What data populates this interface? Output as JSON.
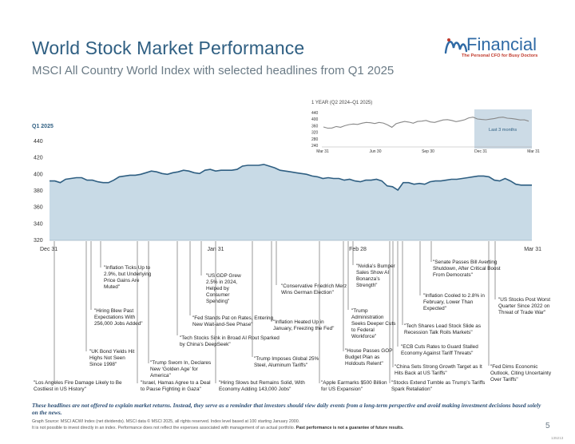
{
  "header": {
    "title": "World Stock Market Performance",
    "subtitle": "MSCI All Country World Index with selected headlines from Q1 2025"
  },
  "logo": {
    "name": "Financial",
    "tagline": "The Personal CFO for Busy Doctors",
    "color": "#2f6aa5"
  },
  "chart_data": [
    {
      "type": "area",
      "title": "Q1 2025",
      "ylim": [
        320,
        440
      ],
      "yticks": [
        320,
        340,
        360,
        380,
        400,
        420,
        440
      ],
      "xticks": [
        "Dec 31",
        "Jan 31",
        "Feb 28",
        "Mar 31"
      ],
      "color_fill": "#c8dae6",
      "color_line": "#2f5f82",
      "values": [
        392,
        392,
        390,
        394,
        395,
        396,
        396,
        393,
        393,
        391,
        390,
        390,
        393,
        397,
        398,
        399,
        399,
        400,
        402,
        404,
        403,
        401,
        400,
        402,
        403,
        405,
        404,
        402,
        401,
        405,
        406,
        404,
        405,
        405,
        405,
        406,
        410,
        411,
        411,
        411,
        412,
        410,
        408,
        405,
        404,
        403,
        402,
        401,
        400,
        398,
        397,
        395,
        396,
        395,
        395,
        393,
        394,
        392,
        391,
        393,
        393,
        394,
        392,
        386,
        385,
        381,
        390,
        390,
        388,
        389,
        388,
        391,
        392,
        392,
        393,
        394,
        394,
        395,
        396,
        397,
        398,
        398,
        397,
        393,
        392,
        395,
        392,
        388,
        387,
        387,
        387
      ]
    },
    {
      "type": "line",
      "title": "1 YEAR (Q2 2024–Q1 2025)",
      "ylim": [
        240,
        440
      ],
      "yticks": [
        240,
        280,
        320,
        360,
        400,
        440
      ],
      "xticks": [
        "Mar 31",
        "Jun 30",
        "Sep 30",
        "Dec 31",
        "Mar 31"
      ],
      "highlight_label": "Last 3 months",
      "color_line": "#888888",
      "color_highlight": "#ccdbe6",
      "values": [
        352,
        345,
        346,
        355,
        350,
        360,
        367,
        370,
        368,
        375,
        380,
        378,
        373,
        380,
        376,
        365,
        350,
        372,
        380,
        386,
        382,
        375,
        386,
        388,
        392,
        383,
        380,
        388,
        395,
        397,
        392,
        385,
        390,
        396,
        408,
        412,
        401,
        398,
        396,
        400,
        404,
        410,
        412,
        406,
        404,
        400,
        395,
        396,
        388
      ]
    }
  ],
  "headlines": [
    {
      "text": "\"Los Angeles Fire Damage Likely to Be Costliest in US History\""
    },
    {
      "text": "\"UK Bond Yields Hit Highs Not Seen Since 1998\""
    },
    {
      "text": "\"Hiring Blew Past Expectations With 256,000 Jobs Added\""
    },
    {
      "text": "\"Inflation Ticks Up to 2.9%, but Underlying Price Gains Are Muted\""
    },
    {
      "text": "\"Israel, Hamas Agree to a Deal to Pause Fighting in Gaza\""
    },
    {
      "text": "\"Trump Sworn In, Declares New ‘Golden Age’ for America\""
    },
    {
      "text": "\"Tech Stocks Sink in Broad AI Rout Sparked by China’s DeepSeek\""
    },
    {
      "text": "\"Fed Stands Pat on Rates, Entering New Wait-and-See Phase\""
    },
    {
      "text": "\"US GDP Grew 2.5% in 2024, Helped by Consumer Spending\""
    },
    {
      "text": "\"Hiring Slows but Remains Solid, With Economy Adding 143,000 Jobs\""
    },
    {
      "text": "\"Trump Imposes Global 25% Steel, Aluminum Tariffs\""
    },
    {
      "text": "\"Inflation Heated Up in January, Freezing the Fed\""
    },
    {
      "text": "\"Conservative Friedrich Merz Wins German Election\""
    },
    {
      "text": "\"Apple Earmarks $500 Billion for US Expansion\""
    },
    {
      "text": "\"House Passes GOP Budget Plan as Holdouts Relent\""
    },
    {
      "text": "\"Trump Administration Seeks Deeper Cuts to Federal Workforce\""
    },
    {
      "text": "\"Nvidia’s Bumper Sales Show AI Bonanza’s Strength\""
    },
    {
      "text": "\"Stocks Extend Tumble as Trump’s Tariffs Spark Retaliation\""
    },
    {
      "text": "\"China Sets Strong Growth Target as It Hits Back at US Tariffs\""
    },
    {
      "text": "\"ECB Cuts Rates to Guard Stalled Economy Against Tariff Threats\""
    },
    {
      "text": "\"Tech Shares Lead Stock Slide as Recession Talk Roils Markets\""
    },
    {
      "text": "\"Inflation Cooled to 2.8% in February, Lower Than Expected\""
    },
    {
      "text": "\"Senate Passes Bill Averting Shutdown, After Critical Boost From Democrats\""
    },
    {
      "text": "\"Fed Dims Economic Outlook, Citing Uncertainty Over Tariffs\""
    },
    {
      "text": "\"US Stocks Post Worst Quarter Since 2022 on Threat of Trade War\""
    }
  ],
  "footer": {
    "disclaimer": "These headlines are not offered to explain market returns. Instead, they serve as a reminder that investors should view daily events from a long-term perspective and avoid making investment decisions based solely on the news.",
    "source": "Graph Source: MSCI ACWI Index (net dividends). MSCI data © MSCI 2025, all rights reserved. Index level based at 100 starting January 2000.",
    "note": "It is not possible to invest directly in an index. Performance does not reflect the expenses associated with management of an actual portfolio.",
    "note_bold": "Past performance is not a guarantee of future results.",
    "page": "5",
    "code": "135213"
  }
}
